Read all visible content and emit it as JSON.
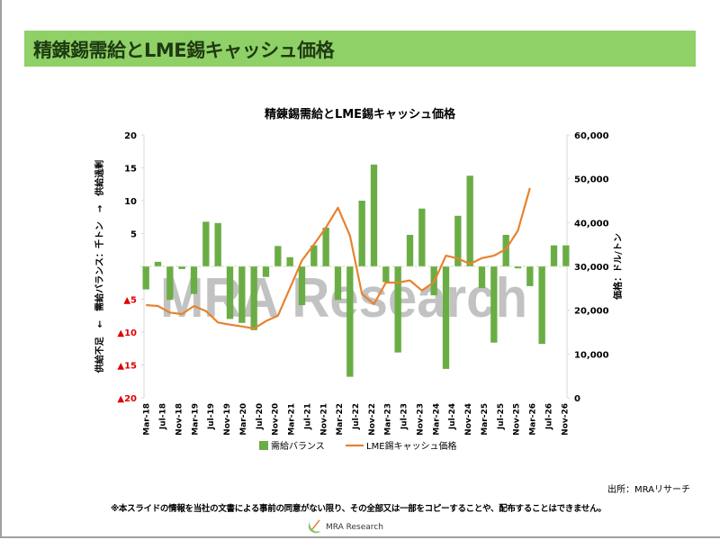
{
  "header": {
    "title": "精錬錫需給とLME錫キャッシュ価格"
  },
  "chart_data": {
    "type": "bar+line",
    "title": "精錬錫需給とLME錫キャッシュ価格",
    "ylabel_left": "供給不足　←　需給バランス：千トン　→　供給過剰",
    "ylabel_right": "価格：ドル/トン",
    "ylim_left": [
      -20,
      20
    ],
    "ylim_right": [
      0,
      60000
    ],
    "left_ticks": [
      {
        "v": 20,
        "label": "20"
      },
      {
        "v": 15,
        "label": "15"
      },
      {
        "v": 10,
        "label": "10"
      },
      {
        "v": 5,
        "label": "5"
      },
      {
        "v": -5,
        "label": "▲5"
      },
      {
        "v": -10,
        "label": "▲10"
      },
      {
        "v": -15,
        "label": "▲15"
      },
      {
        "v": -20,
        "label": "▲20"
      }
    ],
    "right_ticks": [
      {
        "v": 60000,
        "label": "60,000"
      },
      {
        "v": 50000,
        "label": "50,000"
      },
      {
        "v": 40000,
        "label": "40,000"
      },
      {
        "v": 30000,
        "label": "30,000"
      },
      {
        "v": 20000,
        "label": "20,000"
      },
      {
        "v": 10000,
        "label": "10,000"
      },
      {
        "v": 0,
        "label": "0"
      }
    ],
    "x_tick_labels": [
      "Mar-18",
      "Jul-18",
      "Nov-18",
      "Mar-19",
      "Jul-19",
      "Nov-19",
      "Mar-20",
      "Jul-20",
      "Nov-20",
      "Mar-21",
      "Jul-21",
      "Nov-21",
      "Mar-22",
      "Jul-22",
      "Nov-22",
      "Mar-23",
      "Jul-23",
      "Nov-23",
      "Mar-24",
      "Jul-24",
      "Nov-24",
      "Mar-25",
      "Jul-25",
      "Nov-25",
      "Mar-26",
      "Jul-26",
      "Nov-26"
    ],
    "series": [
      {
        "name": "需給バランス",
        "type": "bar",
        "color": "#6aad45",
        "values": [
          -3.5,
          0.7,
          -5.1,
          -0.4,
          -4.2,
          6.8,
          6.6,
          -8.0,
          -8.6,
          -9.7,
          -1.6,
          3.1,
          1.4,
          -5.9,
          3.2,
          5.9,
          -5.1,
          -16.8,
          10.0,
          15.5,
          -2.4,
          -13.1,
          4.8,
          8.8,
          -4.4,
          -15.6,
          7.7,
          13.8,
          -3.3,
          -11.6,
          4.8,
          -0.3,
          -3.0,
          -11.8,
          3.2,
          3.2
        ]
      },
      {
        "name": "LME錫キャッシュ価格",
        "type": "line",
        "color": "#e8822e",
        "values": [
          21160,
          20950,
          19450,
          19100,
          20950,
          19800,
          17200,
          16700,
          16300,
          15800,
          17500,
          18750,
          25050,
          31350,
          35000,
          38900,
          43400,
          37050,
          23700,
          21400,
          26300,
          26300,
          26800,
          24500,
          26400,
          32450,
          31800,
          30550,
          31900,
          32450,
          33950,
          38200,
          47900,
          null,
          null,
          null
        ]
      }
    ],
    "legend": "bottom"
  },
  "watermark": "MRA Research",
  "footer": {
    "source": "出所：MRAリサーチ",
    "notice": "※本スライドの情報を当社の文書による事前の同意がない限り、その全部又は一部をコピーすることや、配布することはできません。",
    "logo_text": "MRA Research"
  }
}
